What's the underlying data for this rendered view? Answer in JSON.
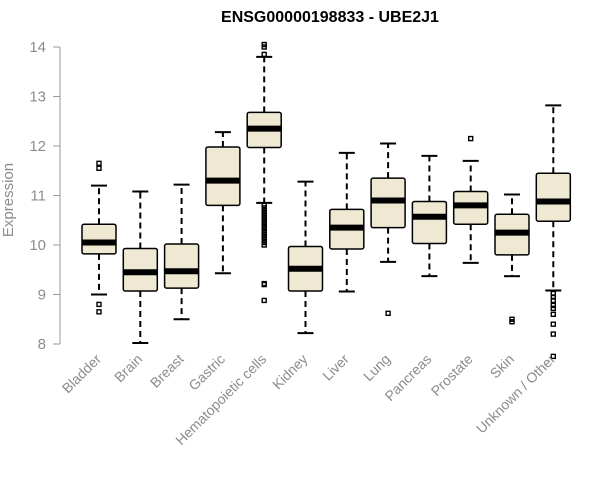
{
  "chart_data": {
    "type": "boxplot",
    "title": "ENSG00000198833 - UBE2J1",
    "xlabel": "",
    "ylabel": "Expression",
    "ylim": [
      7.7,
      14.15
    ],
    "yticks": [
      8,
      9,
      10,
      11,
      12,
      13,
      14
    ],
    "box_fill": "#efe9d3",
    "box_stroke": "#000000",
    "axis_color": "#9a9a9a",
    "label_color": "#8c8c8c",
    "grid": false,
    "categories": [
      "Bladder",
      "Brain",
      "Breast",
      "Gastric",
      "Hematopoietic cells",
      "Kidney",
      "Liver",
      "Lung",
      "Pancreas",
      "Prostate",
      "Skin",
      "Unknown / Other"
    ],
    "boxes": [
      {
        "category": "Bladder",
        "whisker_low": 9.0,
        "q1": 9.82,
        "median": 10.05,
        "q3": 10.42,
        "whisker_high": 11.2,
        "outliers": [
          8.65,
          8.8,
          11.55,
          11.65
        ]
      },
      {
        "category": "Brain",
        "whisker_low": 8.02,
        "q1": 9.07,
        "median": 9.45,
        "q3": 9.93,
        "whisker_high": 11.08,
        "outliers": []
      },
      {
        "category": "Breast",
        "whisker_low": 8.5,
        "q1": 9.13,
        "median": 9.47,
        "q3": 10.02,
        "whisker_high": 11.22,
        "outliers": []
      },
      {
        "category": "Gastric",
        "whisker_low": 9.43,
        "q1": 10.8,
        "median": 11.3,
        "q3": 11.98,
        "whisker_high": 12.28,
        "outliers": []
      },
      {
        "category": "Hematopoietic cells",
        "whisker_low": 10.85,
        "q1": 11.97,
        "median": 12.35,
        "q3": 12.68,
        "whisker_high": 13.8,
        "outliers": [
          8.88,
          9.2,
          9.22,
          10.0,
          10.05,
          10.1,
          10.15,
          10.2,
          10.25,
          10.3,
          10.35,
          10.4,
          10.45,
          10.5,
          10.55,
          10.6,
          10.65,
          10.7,
          10.75,
          10.8,
          13.85,
          14.0,
          14.05
        ]
      },
      {
        "category": "Kidney",
        "whisker_low": 8.22,
        "q1": 9.07,
        "median": 9.52,
        "q3": 9.97,
        "whisker_high": 11.28,
        "outliers": []
      },
      {
        "category": "Liver",
        "whisker_low": 9.06,
        "q1": 9.92,
        "median": 10.35,
        "q3": 10.72,
        "whisker_high": 11.86,
        "outliers": []
      },
      {
        "category": "Lung",
        "whisker_low": 9.66,
        "q1": 10.35,
        "median": 10.9,
        "q3": 11.35,
        "whisker_high": 12.05,
        "outliers": [
          8.62
        ]
      },
      {
        "category": "Pancreas",
        "whisker_low": 9.37,
        "q1": 10.03,
        "median": 10.57,
        "q3": 10.88,
        "whisker_high": 11.8,
        "outliers": []
      },
      {
        "category": "Prostate",
        "whisker_low": 9.64,
        "q1": 10.42,
        "median": 10.8,
        "q3": 11.08,
        "whisker_high": 11.7,
        "outliers": [
          12.15
        ]
      },
      {
        "category": "Skin",
        "whisker_low": 9.37,
        "q1": 9.8,
        "median": 10.25,
        "q3": 10.62,
        "whisker_high": 11.02,
        "outliers": [
          8.45,
          8.5
        ]
      },
      {
        "category": "Unknown / Other",
        "whisker_low": 9.08,
        "q1": 10.48,
        "median": 10.88,
        "q3": 11.45,
        "whisker_high": 12.82,
        "outliers": [
          7.75,
          8.2,
          8.4,
          8.6,
          8.72,
          8.78,
          8.88,
          8.95,
          9.02
        ]
      }
    ]
  }
}
